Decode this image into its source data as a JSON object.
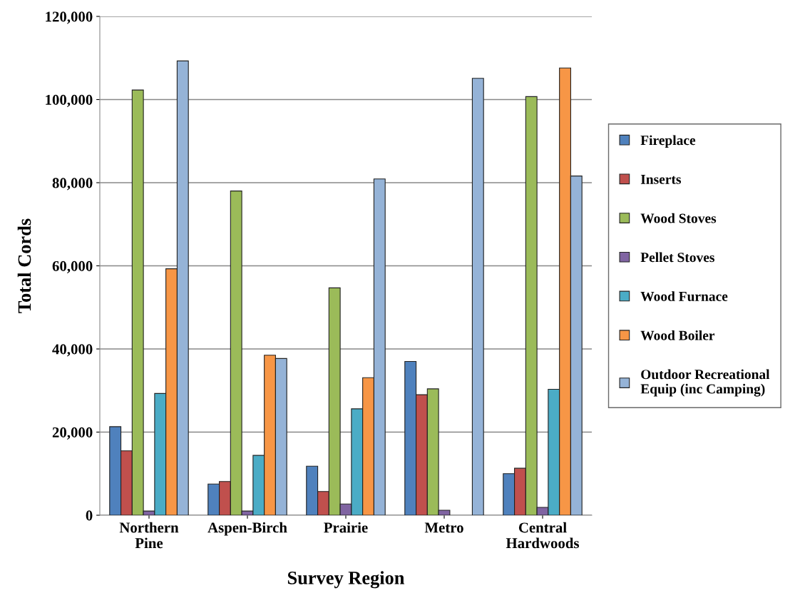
{
  "chart_data": {
    "type": "bar",
    "xlabel": "Survey Region",
    "ylabel": "Total Cords",
    "categories": [
      "Northern\nPine",
      "Aspen-Birch",
      "Prairie",
      "Metro",
      "Central\nHardwoods"
    ],
    "series": [
      {
        "name": "Fireplace",
        "color": "#4f81bd",
        "values": [
          21300,
          7500,
          11800,
          37000,
          10000
        ]
      },
      {
        "name": "Inserts",
        "color": "#c0504d",
        "values": [
          15500,
          8100,
          5700,
          29000,
          11300
        ]
      },
      {
        "name": "Wood Stoves",
        "color": "#9bbb59",
        "values": [
          102300,
          78000,
          54700,
          30400,
          100700
        ]
      },
      {
        "name": "Pellet Stoves",
        "color": "#8064a2",
        "values": [
          1000,
          1000,
          2700,
          1200,
          1900
        ]
      },
      {
        "name": "Wood Furnace",
        "color": "#4bacc6",
        "values": [
          29300,
          14400,
          25600,
          null,
          30300
        ]
      },
      {
        "name": "Wood Boiler",
        "color": "#f79646",
        "values": [
          59300,
          38500,
          33100,
          null,
          107600
        ]
      },
      {
        "name": "Outdoor Recreational\nEquip (inc Camping)",
        "color": "#95b3d7",
        "values": [
          109300,
          37700,
          80900,
          105100,
          81600
        ]
      }
    ],
    "ylim": [
      0,
      120000
    ],
    "yticks": [
      {
        "value": 0,
        "label": "0"
      },
      {
        "value": 20000,
        "label": "20,000"
      },
      {
        "value": 40000,
        "label": "40,000"
      },
      {
        "value": 60000,
        "label": "60,000"
      },
      {
        "value": 80000,
        "label": "80,000"
      },
      {
        "value": 100000,
        "label": "100,000"
      },
      {
        "value": 120000,
        "label": "120,000"
      }
    ],
    "grid": "y",
    "legend": "right"
  }
}
